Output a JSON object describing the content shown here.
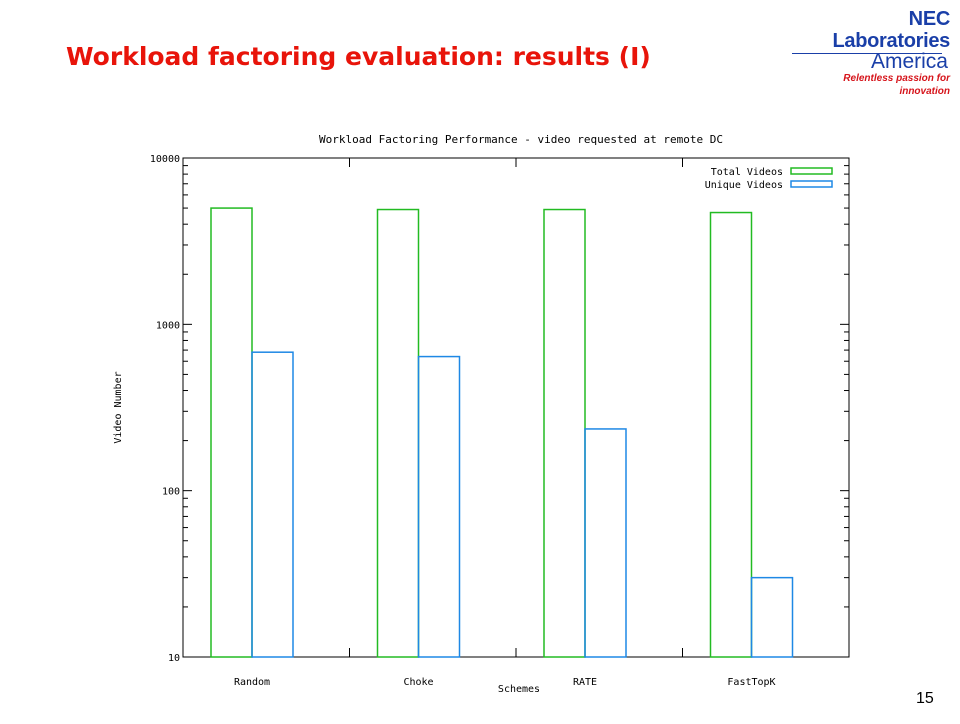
{
  "slide": {
    "title": "Workload factoring evaluation: results (I)",
    "page_number": "15"
  },
  "logo": {
    "line1": "NEC Laboratories",
    "line2": "America",
    "tagline": "Relentless passion for innovation",
    "colors": {
      "blue": "#1a3fa8",
      "red": "#d6141b"
    }
  },
  "chart_data": {
    "type": "bar",
    "title": "Workload Factoring Performance - video requested at remote DC",
    "xlabel": "Schemes",
    "ylabel": "Video Number",
    "categories": [
      "Random",
      "Choke",
      "RATE",
      "FastTopK"
    ],
    "series": [
      {
        "name": "Total Videos",
        "color": "#22bb22",
        "values": [
          5000,
          4900,
          4900,
          4700
        ]
      },
      {
        "name": "Unique Videos",
        "color": "#1e88e5",
        "values": [
          680,
          640,
          235,
          30
        ]
      }
    ],
    "ylim": [
      10,
      10000
    ],
    "yscale": "log",
    "yticks": [
      10,
      100,
      1000,
      10000
    ],
    "ytick_labels": [
      "10",
      "100",
      "1000",
      "10000"
    ],
    "legend_position": "top-right",
    "grid": false,
    "bar_style": "outline"
  }
}
